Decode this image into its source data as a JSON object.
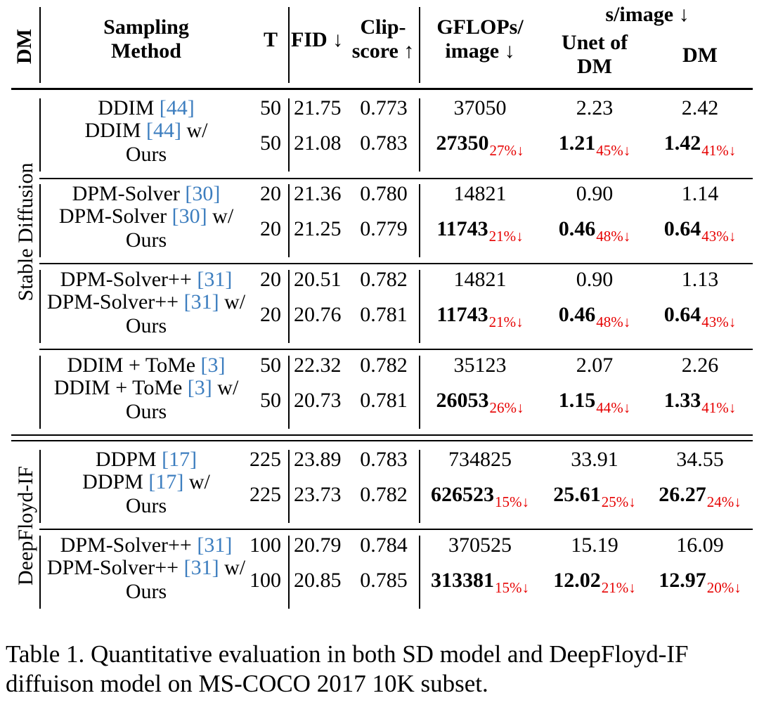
{
  "headers": {
    "dm": "DM",
    "sampling_method_line1": "Sampling",
    "sampling_method_line2": "Method",
    "t": "T",
    "fid": "FID ↓",
    "clip_line1": "Clip-",
    "clip_line2": "score ↑",
    "gflops_line1": "GFLOPs/",
    "gflops_line2": "image ↓",
    "s_per_image": "s/image ↓",
    "unet_line1": "Unet of",
    "unet_line2": "DM",
    "dm_time": "DM"
  },
  "groups": [
    {
      "label": "Stable Diffusion"
    },
    {
      "label": "DeepFloyd-IF"
    }
  ],
  "rows": [
    {
      "method": "DDIM ",
      "ref": "[44]",
      "suffix": "",
      "t": "50",
      "fid": "21.75",
      "clip": "0.773",
      "gflops": "37050",
      "gflops_red": "",
      "unet": "2.23",
      "unet_red": "",
      "dm": "2.42",
      "dm_red": ""
    },
    {
      "method": "DDIM ",
      "ref": "[44]",
      "suffix": " w/",
      "line2": "Ours",
      "t": "50",
      "fid": "21.08",
      "clip": "0.783",
      "gflops": "27350",
      "gflops_red": "27%↓",
      "unet": "1.21",
      "unet_red": "45%↓",
      "dm": "1.42",
      "dm_red": "41%↓"
    },
    {
      "method": "DPM-Solver ",
      "ref": "[30]",
      "suffix": "",
      "t": "20",
      "fid": "21.36",
      "clip": "0.780",
      "gflops": "14821",
      "gflops_red": "",
      "unet": "0.90",
      "unet_red": "",
      "dm": "1.14",
      "dm_red": ""
    },
    {
      "method": "DPM-Solver ",
      "ref": "[30]",
      "suffix": " w/",
      "line2": "Ours",
      "t": "20",
      "fid": "21.25",
      "clip": "0.779",
      "gflops": "11743",
      "gflops_red": "21%↓",
      "unet": "0.46",
      "unet_red": "48%↓",
      "dm": "0.64",
      "dm_red": "43%↓"
    },
    {
      "method": "DPM-Solver++ ",
      "ref": "[31]",
      "suffix": "",
      "t": "20",
      "fid": "20.51",
      "clip": "0.782",
      "gflops": "14821",
      "gflops_red": "",
      "unet": "0.90",
      "unet_red": "",
      "dm": "1.13",
      "dm_red": ""
    },
    {
      "method": "DPM-Solver++ ",
      "ref": "[31]",
      "suffix": " w/",
      "line2": "Ours",
      "t": "20",
      "fid": "20.76",
      "clip": "0.781",
      "gflops": "11743",
      "gflops_red": "21%↓",
      "unet": "0.46",
      "unet_red": "48%↓",
      "dm": "0.64",
      "dm_red": "43%↓"
    },
    {
      "method": "DDIM + ToMe ",
      "ref": "[3]",
      "suffix": "",
      "t": "50",
      "fid": "22.32",
      "clip": "0.782",
      "gflops": "35123",
      "gflops_red": "",
      "unet": "2.07",
      "unet_red": "",
      "dm": "2.26",
      "dm_red": ""
    },
    {
      "method": "DDIM + ToMe ",
      "ref": "[3]",
      "suffix": " w/",
      "line2": "Ours",
      "t": "50",
      "fid": "20.73",
      "clip": "0.781",
      "gflops": "26053",
      "gflops_red": "26%↓",
      "unet": "1.15",
      "unet_red": "44%↓",
      "dm": "1.33",
      "dm_red": "41%↓"
    },
    {
      "method": "DDPM ",
      "ref": "[17]",
      "suffix": "",
      "t": "225",
      "fid": "23.89",
      "clip": "0.783",
      "gflops": "734825",
      "gflops_red": "",
      "unet": "33.91",
      "unet_red": "",
      "dm": "34.55",
      "dm_red": ""
    },
    {
      "method": "DDPM ",
      "ref": "[17]",
      "suffix": " w/",
      "line2": "Ours",
      "t": "225",
      "fid": "23.73",
      "clip": "0.782",
      "gflops": "626523",
      "gflops_red": "15%↓",
      "unet": "25.61",
      "unet_red": "25%↓",
      "dm": "26.27",
      "dm_red": "24%↓"
    },
    {
      "method": "DPM-Solver++ ",
      "ref": "[31]",
      "suffix": "",
      "t": "100",
      "fid": "20.79",
      "clip": "0.784",
      "gflops": "370525",
      "gflops_red": "",
      "unet": "15.19",
      "unet_red": "",
      "dm": "16.09",
      "dm_red": ""
    },
    {
      "method": "DPM-Solver++ ",
      "ref": "[31]",
      "suffix": " w/",
      "line2": "Ours",
      "t": "100",
      "fid": "20.85",
      "clip": "0.785",
      "gflops": "313381",
      "gflops_red": "15%↓",
      "unet": "12.02",
      "unet_red": "21%↓",
      "dm": "12.97",
      "dm_red": "20%↓"
    }
  ],
  "caption": "Table 1. Quantitative evaluation in both SD model and DeepFloyd-IF diffuison model on MS-COCO 2017 10K subset."
}
